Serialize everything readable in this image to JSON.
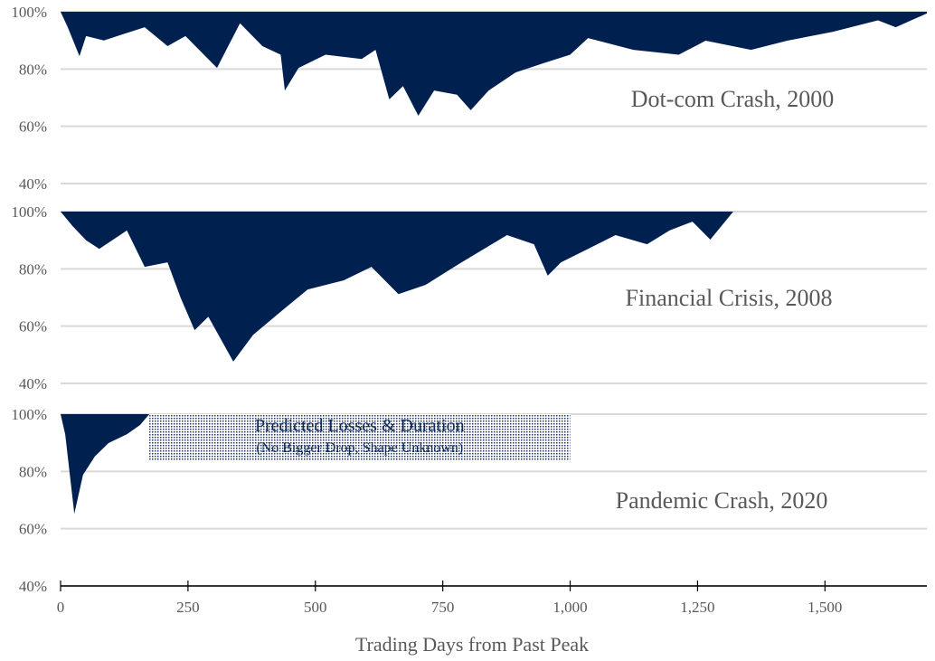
{
  "chart_data": {
    "type": "area",
    "xlabel": "Trading Days from Past Peak",
    "xlim": [
      0,
      1700
    ],
    "xticks": [
      0,
      250,
      500,
      750,
      1000,
      1250,
      1500
    ],
    "xtick_labels": [
      "0",
      "250",
      "500",
      "750",
      "1,000",
      "1,250",
      "1,500"
    ],
    "ylim": [
      40,
      100
    ],
    "yticks": [
      100,
      80,
      60,
      40
    ],
    "ytick_labels": [
      "100%",
      "80%",
      "60%",
      "40%"
    ],
    "grid": true,
    "fill_color": "#002150",
    "panels": [
      {
        "label": "Dot-com Crash, 2000",
        "x": [
          0,
          14,
          37,
          50,
          85,
          165,
          210,
          245,
          307,
          352,
          396,
          432,
          440,
          467,
          520,
          591,
          618,
          645,
          672,
          702,
          733,
          778,
          805,
          840,
          893,
          947,
          1000,
          1035,
          1124,
          1213,
          1266,
          1355,
          1426,
          1515,
          1604,
          1639,
          1700
        ],
        "y": [
          100,
          94.6,
          84.5,
          91.5,
          90,
          94.6,
          88,
          91.5,
          80.4,
          96,
          88,
          85,
          72.5,
          80.4,
          85,
          83.5,
          86.7,
          69.4,
          74,
          63.7,
          72.5,
          71,
          65.6,
          72.5,
          78.8,
          82,
          85,
          90.8,
          86.7,
          85,
          89.9,
          86.7,
          89.9,
          93,
          97,
          94.6,
          99.4
        ]
      },
      {
        "label": "Financial Crisis, 2008",
        "x": [
          0,
          23,
          50,
          76,
          130,
          165,
          210,
          236,
          263,
          290,
          339,
          378,
          432,
          485,
          556,
          610,
          663,
          716,
          787,
          876,
          929,
          956,
          982,
          1035,
          1089,
          1151,
          1195,
          1240,
          1275,
          1320
        ],
        "y": [
          100,
          95,
          90,
          87,
          93.4,
          80.7,
          82.3,
          69.7,
          58.6,
          63.3,
          47.6,
          57,
          65,
          72.8,
          76,
          80.7,
          71.2,
          74.4,
          82.3,
          91.8,
          88.6,
          77.6,
          82.3,
          87,
          91.8,
          88.6,
          93.4,
          96.5,
          90.2,
          100
        ]
      },
      {
        "label": "Pandemic Crash, 2020",
        "x": [
          0,
          9,
          27,
          44,
          67,
          94,
          130,
          156,
          174
        ],
        "y": [
          100,
          93,
          65.2,
          78.8,
          85.2,
          89.9,
          93,
          96.2,
          100
        ],
        "prediction": {
          "title": "Predicted Losses & Duration",
          "subtitle": "(No Bigger Drop, Shape Unknown)",
          "x_range": [
            174,
            1000
          ],
          "y_range": [
            84,
            100
          ]
        }
      }
    ]
  }
}
